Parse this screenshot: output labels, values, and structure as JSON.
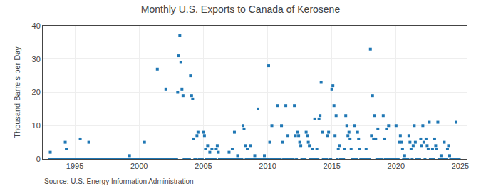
{
  "chart_data": {
    "type": "scatter",
    "title": "Monthly U.S. Exports to Canada of Kerosene",
    "y_label": "Thousand Barrels per Day",
    "annotations": [
      "Source: U.S. Energy Information Administration"
    ],
    "marker": "square",
    "grid": true,
    "xlim": [
      1992.5,
      2025.5
    ],
    "ylim": [
      0,
      40
    ],
    "xticks": [
      1995,
      2000,
      2005,
      2010,
      2015,
      2020,
      2025
    ],
    "yticks": [
      0,
      10,
      20,
      30,
      40
    ],
    "x": [
      1993.0,
      1993.083,
      1993.167,
      1993.25,
      1993.333,
      1993.417,
      1993.5,
      1993.583,
      1993.667,
      1993.75,
      1993.833,
      1993.917,
      1994.0,
      1994.083,
      1994.167,
      1994.25,
      1994.333,
      1994.417,
      1994.5,
      1994.583,
      1994.667,
      1994.75,
      1994.833,
      1994.917,
      1995.0,
      1995.083,
      1995.167,
      1995.25,
      1995.333,
      1995.417,
      1995.5,
      1995.583,
      1995.667,
      1995.75,
      1995.833,
      1995.917,
      1996.0,
      1996.083,
      1996.167,
      1996.25,
      1996.333,
      1996.417,
      1996.5,
      1996.583,
      1996.667,
      1996.75,
      1996.833,
      1996.917,
      1997.0,
      1997.083,
      1997.167,
      1997.25,
      1997.333,
      1997.417,
      1997.5,
      1997.583,
      1997.667,
      1997.75,
      1997.833,
      1997.917,
      1998.0,
      1998.083,
      1998.167,
      1998.25,
      1998.333,
      1998.417,
      1998.5,
      1998.583,
      1998.667,
      1998.75,
      1998.833,
      1998.917,
      1999.0,
      1999.083,
      1999.167,
      1999.25,
      1999.333,
      1999.417,
      1999.5,
      1999.583,
      1999.667,
      1999.75,
      1999.833,
      1999.917,
      2000.0,
      2000.083,
      2000.167,
      2000.25,
      2000.333,
      2000.417,
      2000.5,
      2000.583,
      2000.667,
      2000.75,
      2000.833,
      2000.917,
      2001.0,
      2001.083,
      2001.167,
      2001.25,
      2001.333,
      2001.417,
      2001.5,
      2001.583,
      2001.667,
      2001.75,
      2001.833,
      2001.917,
      2002.0,
      2002.083,
      2002.167,
      2002.25,
      2002.333,
      2002.417,
      2002.5,
      2002.583,
      2002.667,
      2002.75,
      2002.833,
      2002.917,
      2003.0,
      2003.083,
      2003.167,
      2003.25,
      2003.333,
      2003.417,
      2003.5,
      2003.583,
      2003.667,
      2003.75,
      2003.833,
      2003.917,
      2004.0,
      2004.083,
      2004.167,
      2004.25,
      2004.333,
      2004.417,
      2004.5,
      2004.583,
      2004.667,
      2004.75,
      2004.833,
      2004.917,
      2005.0,
      2005.083,
      2005.167,
      2005.25,
      2005.333,
      2005.417,
      2005.5,
      2005.583,
      2005.667,
      2005.75,
      2005.833,
      2005.917,
      2006.0,
      2006.083,
      2006.167,
      2006.25,
      2006.333,
      2006.417,
      2006.5,
      2006.583,
      2006.667,
      2006.75,
      2006.833,
      2006.917,
      2007.0,
      2007.083,
      2007.167,
      2007.25,
      2007.333,
      2007.417,
      2007.5,
      2007.583,
      2007.667,
      2007.75,
      2007.833,
      2007.917,
      2008.0,
      2008.083,
      2008.167,
      2008.25,
      2008.333,
      2008.417,
      2008.5,
      2008.583,
      2008.667,
      2008.75,
      2008.833,
      2008.917,
      2009.0,
      2009.083,
      2009.167,
      2009.25,
      2009.333,
      2009.417,
      2009.5,
      2009.583,
      2009.667,
      2009.75,
      2009.833,
      2009.917,
      2010.0,
      2010.083,
      2010.167,
      2010.25,
      2010.333,
      2010.417,
      2010.5,
      2010.583,
      2010.667,
      2010.75,
      2010.833,
      2010.917,
      2011.0,
      2011.083,
      2011.167,
      2011.25,
      2011.333,
      2011.417,
      2011.5,
      2011.583,
      2011.667,
      2011.75,
      2011.833,
      2011.917,
      2012.0,
      2012.083,
      2012.167,
      2012.25,
      2012.333,
      2012.417,
      2012.5,
      2012.583,
      2012.667,
      2012.75,
      2012.833,
      2012.917,
      2013.0,
      2013.083,
      2013.167,
      2013.25,
      2013.333,
      2013.417,
      2013.5,
      2013.583,
      2013.667,
      2013.75,
      2013.833,
      2013.917,
      2014.0,
      2014.083,
      2014.167,
      2014.25,
      2014.333,
      2014.417,
      2014.5,
      2014.583,
      2014.667,
      2014.75,
      2014.833,
      2014.917,
      2015.0,
      2015.083,
      2015.167,
      2015.25,
      2015.333,
      2015.417,
      2015.5,
      2015.583,
      2015.667,
      2015.75,
      2015.833,
      2015.917,
      2016.0,
      2016.083,
      2016.167,
      2016.25,
      2016.333,
      2016.417,
      2016.5,
      2016.583,
      2016.667,
      2016.75,
      2016.833,
      2016.917,
      2017.0,
      2017.083,
      2017.167,
      2017.25,
      2017.333,
      2017.417,
      2017.5,
      2017.583,
      2017.667,
      2017.75,
      2017.833,
      2017.917,
      2018.0,
      2018.083,
      2018.167,
      2018.25,
      2018.333,
      2018.417,
      2018.5,
      2018.583,
      2018.667,
      2018.75,
      2018.833,
      2018.917,
      2019.0,
      2019.083,
      2019.167,
      2019.25,
      2019.333,
      2019.417,
      2019.5,
      2019.583,
      2019.667,
      2019.75,
      2019.833,
      2019.917,
      2020.0,
      2020.083,
      2020.167,
      2020.25,
      2020.333,
      2020.417,
      2020.5,
      2020.583,
      2020.667,
      2020.75,
      2020.833,
      2020.917,
      2021.0,
      2021.083,
      2021.167,
      2021.25,
      2021.333,
      2021.417,
      2021.5,
      2021.583,
      2021.667,
      2021.75,
      2021.833,
      2021.917,
      2022.0,
      2022.083,
      2022.167,
      2022.25,
      2022.333,
      2022.417,
      2022.5,
      2022.583,
      2022.667,
      2022.75,
      2022.833,
      2022.917,
      2023.0,
      2023.083,
      2023.167,
      2023.25,
      2023.333,
      2023.417,
      2023.5,
      2023.583,
      2023.667,
      2023.75,
      2023.833,
      2023.917,
      2024.0,
      2024.083,
      2024.167,
      2024.25,
      2024.333,
      2024.417,
      2024.5,
      2024.583,
      2024.667,
      2024.75,
      2024.833,
      2024.917
    ],
    "values": [
      0,
      2,
      0,
      0,
      0,
      0,
      0,
      0,
      0,
      0,
      0,
      0,
      0,
      0,
      0,
      5,
      3,
      0,
      0,
      0,
      0,
      0,
      0,
      0,
      0,
      0,
      0,
      0,
      0,
      6,
      0,
      0,
      0,
      0,
      0,
      0,
      0,
      5,
      0,
      0,
      0,
      0,
      0,
      0,
      0,
      0,
      0,
      0,
      0,
      0,
      0,
      0,
      0,
      0,
      0,
      0,
      0,
      0,
      0,
      0,
      0,
      0,
      0,
      0,
      0,
      0,
      0,
      0,
      0,
      0,
      0,
      0,
      0,
      0,
      0,
      1,
      0,
      0,
      0,
      0,
      0,
      0,
      0,
      0,
      0,
      0,
      0,
      0,
      0,
      5,
      0,
      0,
      0,
      0,
      0,
      0,
      0,
      0,
      0,
      0,
      0,
      27,
      0,
      0,
      0,
      0,
      0,
      0,
      0,
      21,
      0,
      0,
      0,
      0,
      0,
      0,
      0,
      0,
      0,
      0,
      20,
      31,
      37,
      29,
      21,
      19,
      0,
      0,
      0,
      0,
      0,
      0,
      25,
      19,
      18,
      6,
      0,
      0,
      7,
      8,
      0,
      0,
      0,
      0,
      8,
      7,
      3,
      0,
      4,
      0,
      2,
      0,
      3,
      0,
      0,
      0,
      3,
      4,
      2,
      0,
      0,
      0,
      0,
      0,
      0,
      0,
      0,
      0,
      2,
      0,
      0,
      3,
      0,
      8,
      0,
      0,
      1,
      0,
      0,
      0,
      0,
      10,
      9,
      4,
      0,
      3,
      0,
      0,
      4,
      0,
      0,
      0,
      1,
      0,
      0,
      15,
      0,
      0,
      0,
      0,
      0,
      1,
      0,
      0,
      0,
      28,
      5,
      0,
      10,
      0,
      0,
      0,
      0,
      16,
      0,
      0,
      0,
      10,
      5,
      0,
      0,
      16,
      0,
      7,
      0,
      0,
      0,
      0,
      0,
      16,
      7,
      0,
      8,
      7,
      5,
      4,
      0,
      0,
      0,
      0,
      8,
      7,
      5,
      4,
      0,
      0,
      3,
      0,
      12,
      0,
      3,
      0,
      12,
      13,
      23,
      8,
      0,
      0,
      0,
      0,
      7,
      8,
      0,
      0,
      21,
      22,
      16,
      7,
      13,
      0,
      3,
      4,
      0,
      0,
      0,
      0,
      3,
      13,
      10,
      7,
      8,
      6,
      3,
      0,
      0,
      10,
      0,
      0,
      8,
      6,
      3,
      0,
      0,
      0,
      0,
      0,
      3,
      0,
      0,
      0,
      33,
      7,
      19,
      6,
      13,
      6,
      0,
      9,
      0,
      0,
      0,
      0,
      13,
      6,
      0,
      9,
      0,
      10,
      0,
      0,
      0,
      0,
      0,
      0,
      10,
      0,
      0,
      5,
      7,
      5,
      3,
      0,
      1,
      0,
      0,
      0,
      7,
      5,
      3,
      0,
      4,
      10,
      5,
      0,
      0,
      0,
      0,
      6,
      4,
      10,
      5,
      0,
      6,
      4,
      3,
      11,
      0,
      0,
      3,
      0,
      6,
      4,
      3,
      11,
      0,
      0,
      1,
      0,
      0,
      5,
      0,
      0,
      3,
      4,
      1,
      0,
      0,
      0,
      0,
      0,
      11,
      0,
      0,
      0
    ]
  }
}
